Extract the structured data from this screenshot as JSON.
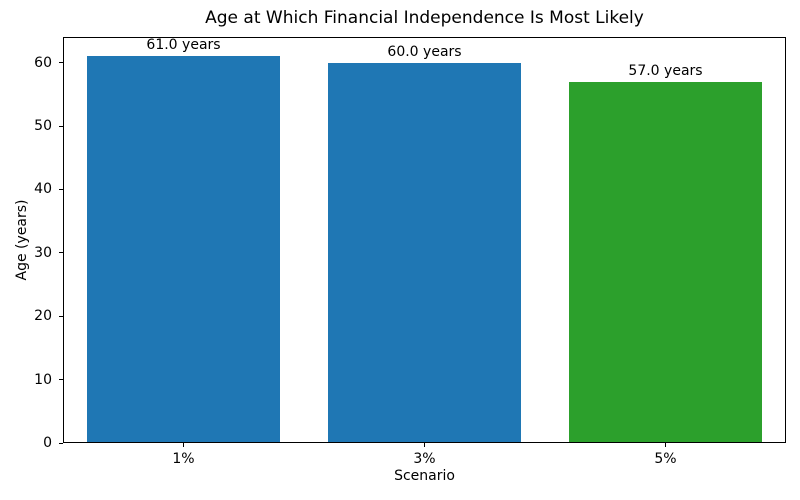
{
  "chart_data": {
    "type": "bar",
    "title": "Age at Which Financial Independence Is Most Likely",
    "xlabel": "Scenario",
    "ylabel": "Age (years)",
    "categories": [
      "1%",
      "3%",
      "5%"
    ],
    "values": [
      61.0,
      60.0,
      57.0
    ],
    "bar_labels": [
      "61.0 years",
      "60.0 years",
      "57.0 years"
    ],
    "bar_colors": [
      "#1f77b4",
      "#1f77b4",
      "#2ca02c"
    ],
    "ylim": [
      0,
      64.05
    ],
    "yticks": [
      0,
      10,
      20,
      30,
      40,
      50,
      60
    ],
    "bar_width_fraction": 0.8,
    "grid": false,
    "legend": null,
    "background_color": "#ffffff",
    "spine_color": "#000000"
  }
}
